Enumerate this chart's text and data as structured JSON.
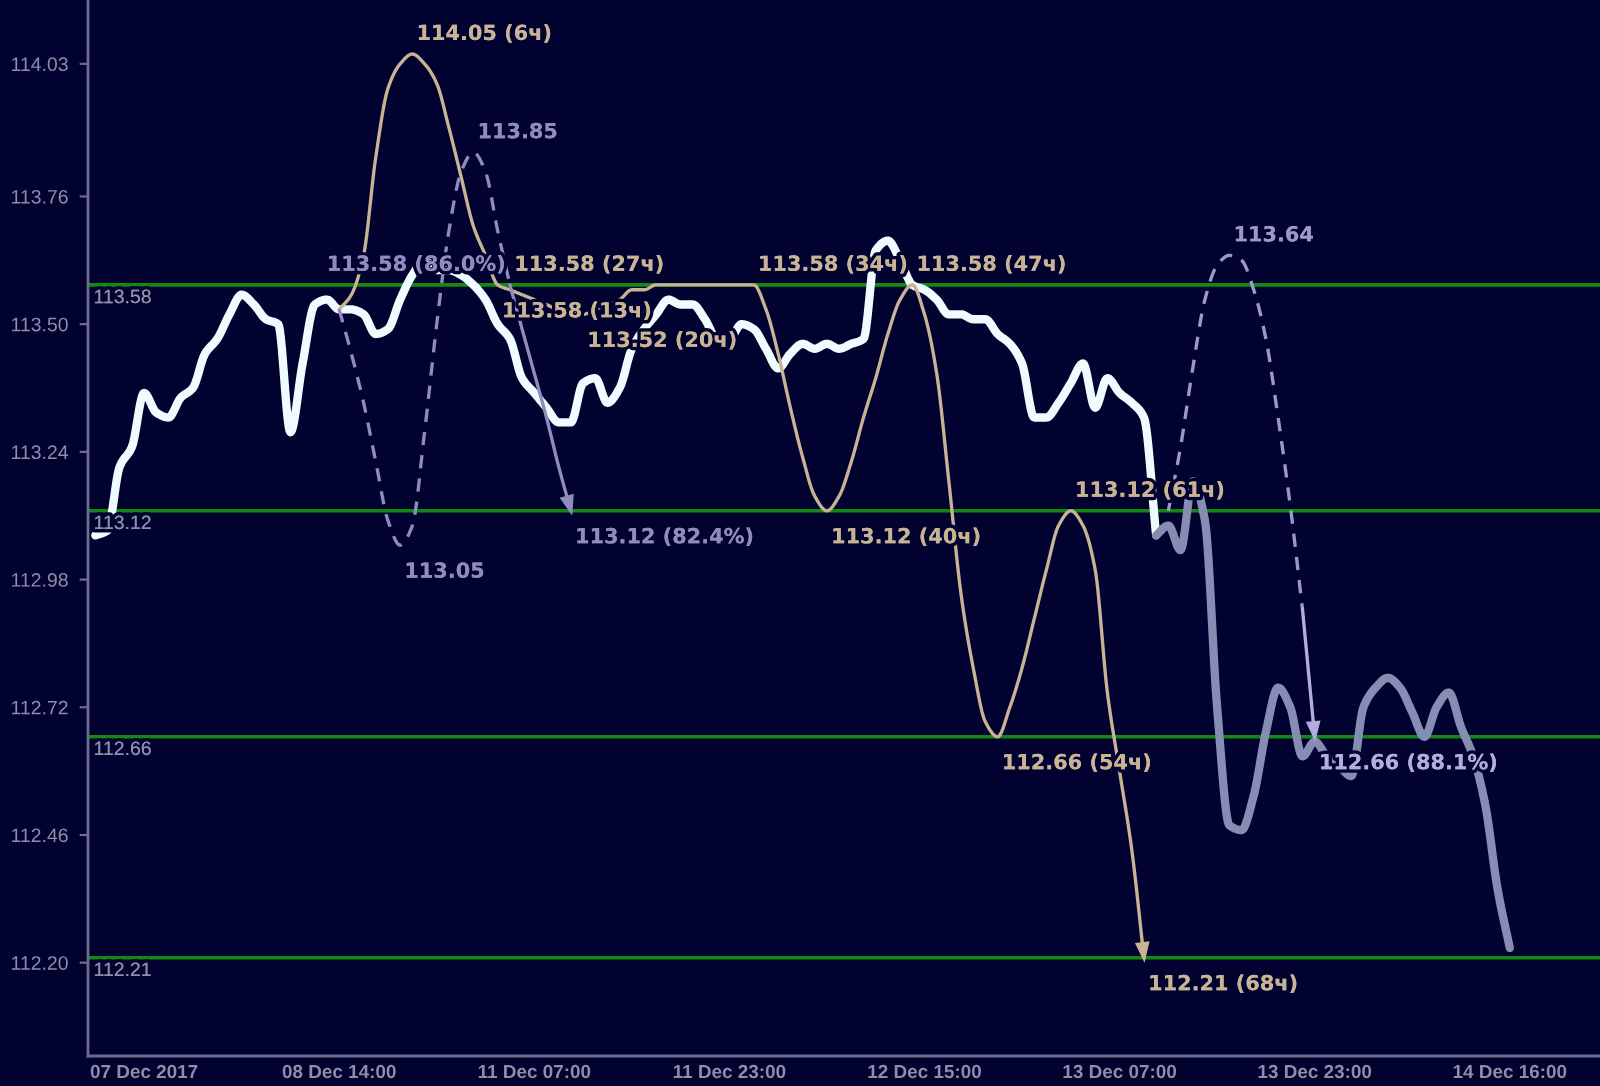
{
  "chart_data": {
    "type": "line",
    "categories": [
      null,
      null,
      null,
      null,
      "07 Dec 2017",
      null,
      null,
      null,
      null,
      null,
      null,
      null,
      null,
      null,
      null,
      null,
      null,
      null,
      null,
      null,
      "08 Dec 14:00",
      null,
      null,
      null,
      null,
      null,
      null,
      null,
      null,
      null,
      null,
      null,
      null,
      null,
      null,
      null,
      "11 Dec 07:00",
      null,
      null,
      null,
      null,
      null,
      null,
      null,
      null,
      null,
      null,
      null,
      null,
      null,
      null,
      null,
      "11 Dec 23:00",
      null,
      null,
      null,
      null,
      null,
      null,
      null,
      null,
      null,
      null,
      null,
      null,
      null,
      null,
      null,
      "12 Dec 15:00",
      null,
      null,
      null,
      null,
      null,
      null,
      null,
      null,
      null,
      null,
      null,
      null,
      null,
      null,
      null,
      "13 Dec 07:00",
      null,
      null,
      null,
      null,
      null,
      null,
      null,
      null,
      null,
      null,
      null,
      null,
      null,
      null,
      null,
      "13 Dec 23:00",
      null,
      null,
      null,
      null,
      null,
      null,
      null,
      null,
      null,
      null,
      null,
      null,
      null,
      null,
      null,
      "14 Dec 16:00",
      null,
      null,
      null,
      null,
      null,
      null,
      null
    ],
    "ylim": [
      112.01,
      114.16
    ],
    "yticks": [
      {
        "value": 112.2,
        "label": "112.20"
      },
      112.46,
      112.72,
      112.98,
      113.24,
      {
        "value": 113.5,
        "label": "113.50"
      },
      113.76,
      114.03
    ],
    "ref_lines": [
      {
        "axis": "y",
        "value": 113.58,
        "label": "113.58",
        "color": "#128a12"
      },
      {
        "axis": "y",
        "value": 113.12,
        "label": "113.12",
        "color": "#128a12"
      },
      {
        "axis": "y",
        "value": 112.66,
        "label": "112.66",
        "color": "#128a12"
      },
      {
        "axis": "y",
        "value": 112.21,
        "label": "112.21",
        "color": "#128a12"
      }
    ],
    "series": [
      {
        "color": "#eefcff",
        "values": [
          113.07,
          113.08,
          113.21,
          113.25,
          113.36,
          113.32,
          113.31,
          113.35,
          113.37,
          113.44,
          113.47,
          113.52,
          113.56,
          113.54,
          113.51,
          113.5,
          113.28,
          113.42,
          113.54,
          113.55,
          113.53,
          113.53,
          113.52,
          113.48,
          113.49,
          113.55,
          113.6,
          113.63,
          113.61,
          113.61,
          113.6,
          113.58,
          113.55,
          113.5,
          113.47,
          113.39,
          113.36,
          113.33,
          113.3,
          113.3,
          113.38,
          113.39,
          113.34,
          113.37,
          113.45,
          113.49,
          113.52,
          113.55,
          113.54,
          113.54,
          113.51,
          113.47,
          113.47,
          113.5,
          113.49,
          113.45,
          113.41,
          113.44,
          113.46,
          113.45,
          113.46,
          113.45,
          113.46,
          113.47,
          113.65,
          113.67,
          113.63,
          113.58,
          113.57,
          113.55,
          113.52,
          113.52,
          113.51,
          113.51,
          113.48,
          113.46,
          113.42,
          113.31,
          113.31,
          113.34,
          113.38,
          113.42,
          113.33,
          113.39,
          113.36,
          113.34,
          113.31,
          113.07,
          null,
          null,
          null,
          null,
          null,
          null,
          null,
          null,
          null,
          null,
          null,
          null,
          null,
          null,
          null,
          null,
          null,
          null,
          null,
          null,
          null,
          null,
          null,
          null,
          null,
          null,
          null,
          null,
          null,
          null,
          null,
          null,
          null,
          null,
          null,
          null
        ]
      },
      {
        "color": "#868cb2",
        "values": [
          null,
          null,
          null,
          null,
          null,
          null,
          null,
          null,
          null,
          null,
          null,
          null,
          null,
          null,
          null,
          null,
          null,
          null,
          null,
          null,
          null,
          null,
          null,
          null,
          null,
          null,
          null,
          null,
          null,
          null,
          null,
          null,
          null,
          null,
          null,
          null,
          null,
          null,
          null,
          null,
          null,
          null,
          null,
          null,
          null,
          null,
          null,
          null,
          null,
          null,
          null,
          null,
          null,
          null,
          null,
          null,
          null,
          null,
          null,
          null,
          null,
          null,
          null,
          null,
          null,
          null,
          null,
          null,
          null,
          null,
          null,
          null,
          null,
          null,
          null,
          null,
          null,
          null,
          null,
          null,
          null,
          null,
          null,
          null,
          null,
          null,
          null,
          113.07,
          113.09,
          113.04,
          113.18,
          113.1,
          112.72,
          112.48,
          112.47,
          112.54,
          112.67,
          112.76,
          112.72,
          112.62,
          112.65,
          112.62,
          112.6,
          112.58,
          112.72,
          112.76,
          112.78,
          112.76,
          112.71,
          112.66,
          112.72,
          112.75,
          112.68,
          112.62,
          112.52,
          112.35,
          112.23,
          null,
          null,
          null,
          null,
          null,
          null,
          null
        ]
      },
      {
        "color": "#c8b494",
        "values": [
          null,
          null,
          null,
          null,
          null,
          null,
          null,
          null,
          null,
          null,
          null,
          null,
          null,
          null,
          null,
          null,
          null,
          null,
          null,
          null,
          113.53,
          113.56,
          113.64,
          113.84,
          113.98,
          114.03,
          114.05,
          114.03,
          113.99,
          113.9,
          113.8,
          113.7,
          113.64,
          113.58,
          113.57,
          113.56,
          113.55,
          113.54,
          113.53,
          113.53,
          113.52,
          113.53,
          113.54,
          113.55,
          113.57,
          113.57,
          113.58,
          113.58,
          113.58,
          113.58,
          113.58,
          113.58,
          113.58,
          113.58,
          113.58,
          113.53,
          113.44,
          113.33,
          113.23,
          113.15,
          113.12,
          113.15,
          113.22,
          113.31,
          113.39,
          113.48,
          113.55,
          113.58,
          113.52,
          113.4,
          113.18,
          112.95,
          112.8,
          112.69,
          112.66,
          112.72,
          112.8,
          112.9,
          113.0,
          113.09,
          113.12,
          113.09,
          113.0,
          112.75,
          112.59,
          112.43,
          112.21,
          null,
          null,
          null,
          null,
          null,
          null,
          null,
          null,
          null,
          null,
          null,
          null,
          null,
          null,
          null,
          null,
          null,
          null,
          null,
          null,
          null,
          null,
          null,
          null,
          null,
          null,
          null,
          null,
          null,
          null,
          null,
          null,
          null,
          null,
          null,
          null,
          null
        ],
        "value_labels": [
          null,
          null,
          null,
          null,
          null,
          null,
          null,
          null,
          null,
          null,
          null,
          null,
          null,
          null,
          null,
          null,
          null,
          null,
          null,
          null,
          null,
          null,
          null,
          null,
          null,
          null,
          "114.05 (6ч)",
          null,
          null,
          null,
          null,
          null,
          null,
          "113.58 (13ч)",
          null,
          null,
          null,
          null,
          null,
          null,
          "113.52 (20ч)",
          null,
          null,
          null,
          null,
          null,
          null,
          "113.58 (27ч)",
          null,
          null,
          null,
          null,
          null,
          null,
          "113.58 (34ч)",
          null,
          null,
          null,
          null,
          null,
          "113.12 (40ч)",
          null,
          null,
          null,
          null,
          null,
          null,
          "113.58 (47ч)",
          null,
          null,
          null,
          null,
          null,
          null,
          "112.66 (54ч)",
          null,
          null,
          null,
          null,
          null,
          "113.12 (61ч)",
          null,
          null,
          null,
          null,
          null,
          "112.21 (68ч)",
          null,
          null,
          null,
          null,
          null,
          null,
          null,
          null,
          null,
          null,
          null,
          null,
          null,
          null,
          null,
          null,
          null,
          null,
          null,
          null,
          null,
          null,
          null,
          null,
          null,
          null,
          null,
          null,
          null,
          null,
          null,
          null,
          null,
          null,
          null,
          null,
          null
        ]
      },
      {
        "color": "#8f8bbd",
        "line_style": "dashed",
        "values": [
          null,
          null,
          null,
          null,
          null,
          null,
          null,
          null,
          null,
          null,
          null,
          null,
          null,
          null,
          null,
          null,
          null,
          null,
          null,
          null,
          113.53,
          113.44,
          113.34,
          113.22,
          113.1,
          113.05,
          113.09,
          113.28,
          113.5,
          113.69,
          113.81,
          113.85,
          113.81,
          113.69,
          113.58,
          null,
          null,
          null,
          null,
          null,
          null,
          null,
          null,
          null,
          null,
          null,
          null,
          null,
          null,
          null,
          null,
          null,
          null,
          null,
          null,
          null,
          null,
          null,
          null,
          null,
          null,
          null,
          null,
          null,
          null,
          null,
          null,
          null,
          null,
          null,
          null,
          null,
          null,
          null,
          null,
          null,
          null,
          null,
          null,
          null,
          null,
          null,
          null,
          null,
          null,
          null,
          null,
          null,
          null,
          null,
          null,
          null,
          null,
          null,
          null,
          null,
          null,
          null,
          null,
          null,
          null,
          null,
          null,
          null,
          null,
          null,
          null,
          null,
          null,
          null,
          null,
          null,
          null,
          null,
          null,
          null,
          null,
          null,
          null,
          null,
          null,
          null,
          null,
          null
        ],
        "value_labels": [
          null,
          null,
          null,
          null,
          null,
          null,
          null,
          null,
          null,
          null,
          null,
          null,
          null,
          null,
          null,
          null,
          null,
          null,
          null,
          null,
          null,
          null,
          null,
          null,
          null,
          "113.05",
          null,
          null,
          null,
          null,
          null,
          "113.85",
          null,
          null,
          null,
          null,
          null,
          null,
          null,
          null,
          null,
          null,
          null,
          null,
          null,
          null,
          null,
          null,
          null,
          null,
          null,
          null,
          null,
          null,
          null,
          null,
          null,
          null,
          null,
          null,
          null,
          null,
          null,
          null,
          null,
          null,
          null,
          null,
          null,
          null,
          null,
          null,
          null,
          null,
          null,
          null,
          null,
          null,
          null,
          null,
          null,
          null,
          null,
          null,
          null,
          null,
          null,
          null,
          null,
          null,
          null,
          null,
          null,
          null,
          null,
          null,
          null,
          null,
          null,
          null,
          null,
          null,
          null,
          null,
          null,
          null,
          null,
          null,
          null,
          null,
          null,
          null,
          null,
          null,
          null,
          null,
          null,
          null,
          null,
          null,
          null,
          null,
          null,
          null
        ]
      },
      {
        "color": "#8f8bbd",
        "values": [
          null,
          null,
          null,
          null,
          null,
          null,
          null,
          null,
          null,
          null,
          null,
          null,
          null,
          null,
          null,
          null,
          null,
          null,
          null,
          null,
          null,
          null,
          null,
          null,
          null,
          null,
          null,
          null,
          null,
          null,
          null,
          null,
          null,
          null,
          113.58,
          113.49,
          113.4,
          113.31,
          113.21,
          113.12,
          null,
          null,
          null,
          null,
          null,
          null,
          null,
          null,
          null,
          null,
          null,
          null,
          null,
          null,
          null,
          null,
          null,
          null,
          null,
          null,
          null,
          null,
          null,
          null,
          null,
          null,
          null,
          null,
          null,
          null,
          null,
          null,
          null,
          null,
          null,
          null,
          null,
          null,
          null,
          null,
          null,
          null,
          null,
          null,
          null,
          null,
          null,
          null,
          null,
          null,
          null,
          null,
          null,
          null,
          null,
          null,
          null,
          null,
          null,
          null,
          null,
          null,
          null,
          null,
          null,
          null,
          null,
          null,
          null,
          null,
          null,
          null,
          null,
          null,
          null,
          null,
          null,
          null,
          null,
          null,
          null,
          null,
          null,
          null
        ],
        "value_labels": [
          null,
          null,
          null,
          null,
          null,
          null,
          null,
          null,
          null,
          null,
          null,
          null,
          null,
          null,
          null,
          null,
          null,
          null,
          null,
          null,
          null,
          null,
          null,
          null,
          null,
          null,
          null,
          null,
          null,
          null,
          null,
          null,
          null,
          null,
          "113.58 (86.0%)",
          null,
          null,
          null,
          null,
          "113.12 (82.4%)",
          null,
          null,
          null,
          null,
          null,
          null,
          null,
          null,
          null,
          null,
          null,
          null,
          null,
          null,
          null,
          null,
          null,
          null,
          null,
          null,
          null,
          null,
          null,
          null,
          null,
          null,
          null,
          null,
          null,
          null,
          null,
          null,
          null,
          null,
          null,
          null,
          null,
          null,
          null,
          null,
          null,
          null,
          null,
          null,
          null,
          null,
          null,
          null,
          null,
          null,
          null,
          null,
          null,
          null,
          null,
          null,
          null,
          null,
          null,
          null,
          null,
          null,
          null,
          null,
          null,
          null,
          null,
          null,
          null,
          null,
          null,
          null,
          null,
          null,
          null,
          null,
          null,
          null,
          null,
          null,
          null,
          null,
          null,
          null
        ]
      },
      {
        "color": "#9c98c8",
        "line_style": "dashed",
        "values": [
          null,
          null,
          null,
          null,
          null,
          null,
          null,
          null,
          null,
          null,
          null,
          null,
          null,
          null,
          null,
          null,
          null,
          null,
          null,
          null,
          null,
          null,
          null,
          null,
          null,
          null,
          null,
          null,
          null,
          null,
          null,
          null,
          null,
          null,
          null,
          null,
          null,
          null,
          null,
          null,
          null,
          null,
          null,
          null,
          null,
          null,
          null,
          null,
          null,
          null,
          null,
          null,
          null,
          null,
          null,
          null,
          null,
          null,
          null,
          null,
          null,
          null,
          null,
          null,
          null,
          null,
          null,
          null,
          null,
          null,
          null,
          null,
          null,
          null,
          null,
          null,
          null,
          null,
          null,
          null,
          null,
          null,
          null,
          null,
          null,
          null,
          null,
          null,
          113.12,
          113.25,
          113.41,
          113.55,
          113.62,
          113.64,
          113.63,
          113.57,
          113.47,
          113.31,
          113.13,
          112.92,
          null,
          null,
          null,
          null,
          null,
          null,
          null,
          null,
          null,
          null,
          null,
          null,
          null,
          null,
          null,
          null,
          null,
          null,
          null,
          null,
          null,
          null,
          null,
          null
        ],
        "value_labels": [
          null,
          null,
          null,
          null,
          null,
          null,
          null,
          null,
          null,
          null,
          null,
          null,
          null,
          null,
          null,
          null,
          null,
          null,
          null,
          null,
          null,
          null,
          null,
          null,
          null,
          null,
          null,
          null,
          null,
          null,
          null,
          null,
          null,
          null,
          null,
          null,
          null,
          null,
          null,
          null,
          null,
          null,
          null,
          null,
          null,
          null,
          null,
          null,
          null,
          null,
          null,
          null,
          null,
          null,
          null,
          null,
          null,
          null,
          null,
          null,
          null,
          null,
          null,
          null,
          null,
          null,
          null,
          null,
          null,
          null,
          null,
          null,
          null,
          null,
          null,
          null,
          null,
          null,
          null,
          null,
          null,
          null,
          null,
          null,
          null,
          null,
          null,
          null,
          null,
          null,
          null,
          null,
          null,
          "113.64",
          null,
          null,
          null,
          null,
          null,
          null,
          null,
          null,
          null,
          null,
          null,
          null,
          null,
          null,
          null,
          null,
          null,
          null,
          null,
          null,
          null,
          null,
          null,
          null,
          null,
          null,
          null,
          null,
          null,
          null
        ]
      },
      {
        "color": "#b4acdc",
        "values": [
          null,
          null,
          null,
          null,
          null,
          null,
          null,
          null,
          null,
          null,
          null,
          null,
          null,
          null,
          null,
          null,
          null,
          null,
          null,
          null,
          null,
          null,
          null,
          null,
          null,
          null,
          null,
          null,
          null,
          null,
          null,
          null,
          null,
          null,
          null,
          null,
          null,
          null,
          null,
          null,
          null,
          null,
          null,
          null,
          null,
          null,
          null,
          null,
          null,
          null,
          null,
          null,
          null,
          null,
          null,
          null,
          null,
          null,
          null,
          null,
          null,
          null,
          null,
          null,
          null,
          null,
          null,
          null,
          null,
          null,
          null,
          null,
          null,
          null,
          null,
          null,
          null,
          null,
          null,
          null,
          null,
          null,
          null,
          null,
          null,
          null,
          null,
          null,
          null,
          null,
          null,
          null,
          null,
          null,
          null,
          null,
          null,
          null,
          null,
          112.92,
          112.66,
          null,
          null,
          null,
          null,
          null,
          null,
          null,
          null,
          null,
          null,
          null,
          null,
          null,
          null,
          null,
          null,
          null,
          null,
          null,
          null,
          null,
          null,
          null
        ],
        "value_labels": [
          null,
          null,
          null,
          null,
          null,
          null,
          null,
          null,
          null,
          null,
          null,
          null,
          null,
          null,
          null,
          null,
          null,
          null,
          null,
          null,
          null,
          null,
          null,
          null,
          null,
          null,
          null,
          null,
          null,
          null,
          null,
          null,
          null,
          null,
          null,
          null,
          null,
          null,
          null,
          null,
          null,
          null,
          null,
          null,
          null,
          null,
          null,
          null,
          null,
          null,
          null,
          null,
          null,
          null,
          null,
          null,
          null,
          null,
          null,
          null,
          null,
          null,
          null,
          null,
          null,
          null,
          null,
          null,
          null,
          null,
          null,
          null,
          null,
          null,
          null,
          null,
          null,
          null,
          null,
          null,
          null,
          null,
          null,
          null,
          null,
          null,
          null,
          null,
          null,
          null,
          null,
          null,
          null,
          null,
          null,
          null,
          null,
          null,
          null,
          null,
          "112.66 (88.1%)",
          null,
          null,
          null,
          null,
          null,
          null,
          null,
          null,
          null,
          null,
          null,
          null,
          null,
          null,
          null,
          null,
          null,
          null,
          null,
          null,
          null,
          null,
          null
        ]
      }
    ]
  }
}
